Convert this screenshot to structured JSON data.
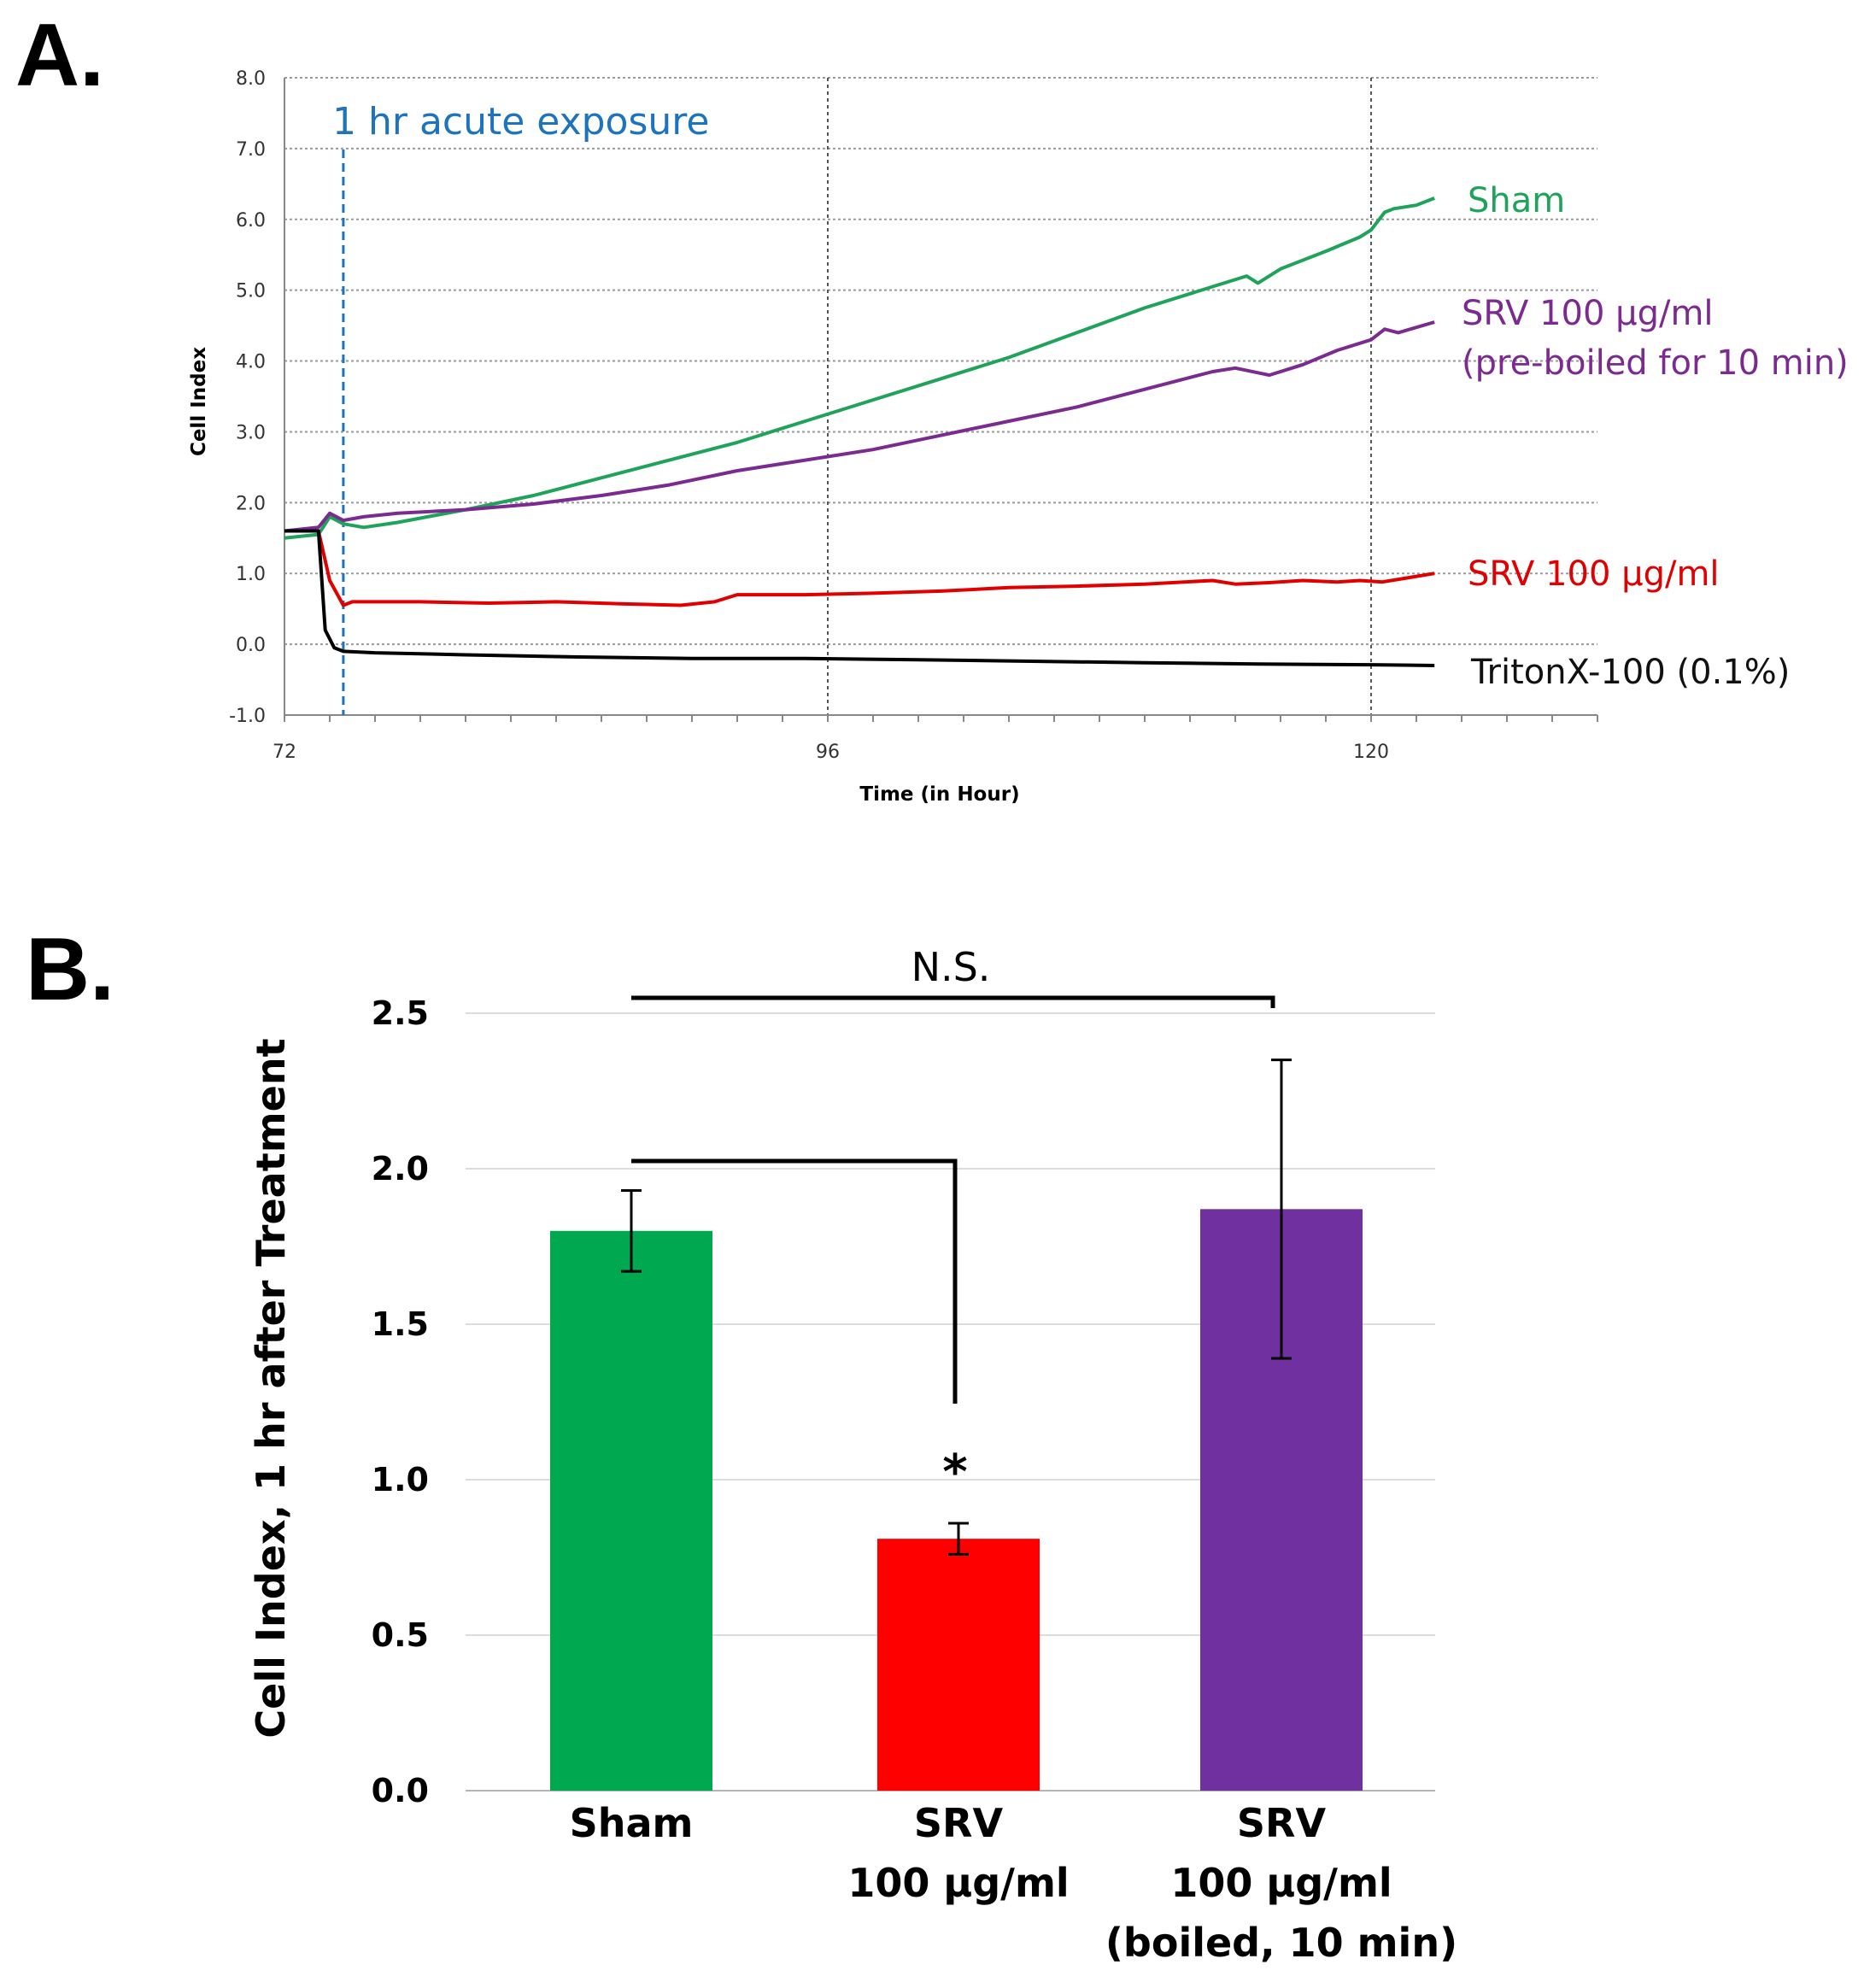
{
  "panels": {
    "a_label": "A.",
    "b_label": "B."
  },
  "chart_data": [
    {
      "type": "line",
      "panel": "A",
      "title": "",
      "xlabel": "Time (in Hour)",
      "ylabel": "Cell Index",
      "xlim": [
        72,
        130
      ],
      "ylim": [
        -1.0,
        8.0
      ],
      "x_ticks": [
        "72",
        "96",
        "120"
      ],
      "y_ticks": [
        "8.0",
        "7.0",
        "6.0",
        "5.0",
        "4.0",
        "3.0",
        "2.0",
        "1.0",
        "0.0",
        "-1.0"
      ],
      "grid": true,
      "annotation": {
        "label": "1 hr acute exposure",
        "x": 74.6,
        "color": "#1e73be"
      },
      "series": [
        {
          "name": "Sham",
          "color": "#1fa35a",
          "x": [
            72,
            73.5,
            74.0,
            74.6,
            75.5,
            77,
            80,
            83,
            86,
            89,
            92,
            95,
            98,
            101,
            104,
            107,
            110,
            113,
            114.5,
            115.0,
            116,
            118,
            119.5,
            120,
            120.6,
            121,
            122,
            122.8
          ],
          "y": [
            1.5,
            1.55,
            1.8,
            1.7,
            1.65,
            1.72,
            1.9,
            2.1,
            2.35,
            2.6,
            2.85,
            3.15,
            3.45,
            3.75,
            4.05,
            4.4,
            4.75,
            5.05,
            5.2,
            5.1,
            5.3,
            5.55,
            5.75,
            5.85,
            6.1,
            6.15,
            6.2,
            6.3
          ]
        },
        {
          "name": "SRV 100 µg/ml\n(pre-boiled for 10 min)",
          "color": "#7b2a90",
          "x": [
            72,
            73.5,
            74.0,
            74.6,
            75.5,
            77,
            80,
            83,
            86,
            89,
            92,
            95,
            98,
            101,
            104,
            107,
            110,
            113,
            114,
            115.5,
            117,
            118.5,
            120,
            120.6,
            121.2,
            122.8
          ],
          "y": [
            1.6,
            1.65,
            1.85,
            1.75,
            1.8,
            1.85,
            1.9,
            1.98,
            2.1,
            2.25,
            2.45,
            2.6,
            2.75,
            2.95,
            3.15,
            3.35,
            3.6,
            3.85,
            3.9,
            3.8,
            3.95,
            4.15,
            4.3,
            4.45,
            4.4,
            4.55
          ]
        },
        {
          "name": "SRV 100 µg/ml",
          "color": "#e00000",
          "x": [
            72,
            73.5,
            74.0,
            74.6,
            75,
            78,
            81,
            84,
            87,
            89.5,
            91,
            92,
            95,
            98,
            101,
            104,
            107,
            110,
            113,
            114,
            115.5,
            117,
            118.5,
            119.5,
            120.5,
            122.8
          ],
          "y": [
            1.6,
            1.6,
            0.9,
            0.55,
            0.6,
            0.6,
            0.58,
            0.6,
            0.57,
            0.55,
            0.6,
            0.7,
            0.7,
            0.72,
            0.75,
            0.8,
            0.82,
            0.85,
            0.9,
            0.85,
            0.87,
            0.9,
            0.88,
            0.9,
            0.88,
            1.0
          ]
        },
        {
          "name": "TritonX-100 (0.1%)",
          "color": "#000000",
          "x": [
            72,
            73.5,
            73.8,
            74.2,
            74.6,
            76,
            80,
            85,
            90,
            95,
            100,
            105,
            110,
            115,
            120,
            122.8
          ],
          "y": [
            1.6,
            1.6,
            0.2,
            -0.05,
            -0.1,
            -0.12,
            -0.15,
            -0.18,
            -0.2,
            -0.2,
            -0.22,
            -0.24,
            -0.26,
            -0.28,
            -0.29,
            -0.3
          ]
        }
      ]
    },
    {
      "type": "bar",
      "panel": "B",
      "title": "",
      "xlabel": "",
      "ylabel": "Cell Index, 1 hr after Treatment",
      "ylim": [
        0.0,
        2.5
      ],
      "y_ticks": [
        "2.5",
        "2.0",
        "1.5",
        "1.0",
        "0.5",
        "0.0"
      ],
      "grid": true,
      "categories": [
        "Sham\n",
        "SRV\n100 µg/ml",
        "SRV\n100 µg/ml\n(boiled, 10 min)"
      ],
      "values": [
        1.8,
        0.81,
        1.87
      ],
      "errors": [
        0.13,
        0.05,
        0.48
      ],
      "colors": [
        "#00a84f",
        "#ff0000",
        "#7030a0"
      ],
      "significance": {
        "star": "*",
        "ns": "N.S."
      }
    }
  ]
}
